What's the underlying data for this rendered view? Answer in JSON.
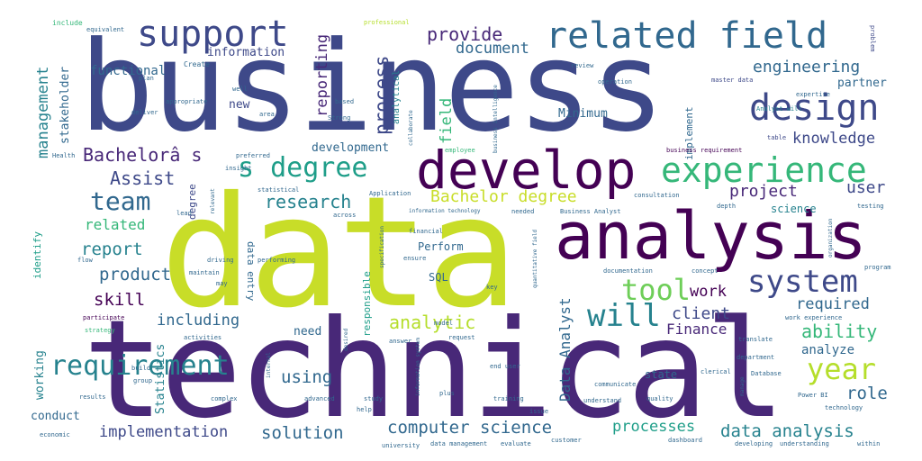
{
  "palette": {
    "background": "#ffffff",
    "dark_purple": "#440154",
    "purple": "#482878",
    "indigo": "#3e4989",
    "blue": "#31688e",
    "teal": "#26828e",
    "green_teal": "#1f9e89",
    "green": "#35b779",
    "light_green": "#6ece58",
    "yellow_green": "#b5de2b",
    "yellow": "#c8dd28"
  },
  "words": {
    "w_business": "business",
    "w_data": "data",
    "w_technical": "technical",
    "w_analysis": "analysis",
    "w_develop": "develop",
    "w_related_field": "related field",
    "w_design": "design",
    "w_experience": "experience",
    "w_support": "support",
    "w_s_degree": "s degree",
    "w_requirement": "requirement",
    "w_team": "team",
    "w_tool": "tool",
    "w_will": "will",
    "w_system": "system",
    "w_year": "year",
    "w_engineering": "engineering",
    "w_provide": "provide",
    "w_document": "document",
    "w_management": "management",
    "w_bachelora_s": "Bachelorâ s",
    "w_assist": "Assist",
    "w_research": "research",
    "w_bachelor_degree": "Bachelor degree",
    "w_process": "process",
    "w_reporting": "reporting",
    "w_project": "project",
    "w_knowledge": "knowledge",
    "w_user": "user",
    "w_related": "related",
    "w_report": "report",
    "w_product": "product",
    "w_skill": "skill",
    "w_including": "including",
    "w_analytic": "analytic",
    "w_client": "client",
    "w_finance": "Finance",
    "w_ability": "ability",
    "w_required": "required",
    "w_work": "work",
    "w_analyze": "analyze",
    "w_role": "role",
    "w_data_analyst": "Data Analyst",
    "w_using": "using",
    "w_computer_science": "computer science",
    "w_solution": "solution",
    "w_implementation": "implementation",
    "w_processes": "processes",
    "w_data_analysis": "data analysis",
    "w_conduct": "conduct",
    "w_working": "working",
    "w_statistics": "Statistics",
    "w_functional": "functional",
    "w_information": "information",
    "w_stakeholder": "stakeholder",
    "w_development": "development",
    "w_field": "field",
    "w_minimum": "Minimum",
    "w_partner": "partner",
    "w_implement": "implement",
    "w_science": "science",
    "w_new": "new",
    "w_perform": "Perform",
    "w_sql": "SQL",
    "w_need": "need",
    "w_identify": "identify",
    "w_responsible": "responsible",
    "w_state": "state",
    "w_data_entry": "data entry",
    "w_degree": "degree",
    "w_analytical": "analytical",
    "w_create": "Create",
    "w_include": "include",
    "w_equivalent": "equivalent",
    "w_professional": "professional",
    "w_operation": "operation",
    "w_master_data": "master data",
    "w_business_intelligence": "business intelligence",
    "w_analyst_will": "Analyst will",
    "w_expertise": "expertise",
    "w_problem": "problem",
    "w_table": "table",
    "w_business_requirement": "business requirement",
    "w_strong": "Strong",
    "w_collaborate": "collaborate",
    "w_preferred": "preferred",
    "w_employee": "employee",
    "w_insight": "insight",
    "w_statistical": "statistical",
    "w_application": "Application",
    "w_information_technology": "information technology",
    "w_business_analyst": "Business Analyst",
    "w_consultation": "consultation",
    "w_depth": "depth",
    "w_testing": "testing",
    "w_across": "across",
    "w_needed": "needed",
    "w_financial": "financial",
    "w_performing": "performing",
    "w_ensure": "ensure",
    "w_specification": "specification",
    "w_documentation": "documentation",
    "w_concept": "concept",
    "w_program": "program",
    "w_driving": "driving",
    "w_maintain": "maintain",
    "w_participate": "participate",
    "w_strategy": "strategy",
    "w_activities": "activities",
    "w_translate": "translate",
    "w_department": "department",
    "w_work_experience": "work experience",
    "w_clerical": "clerical",
    "w_database": "Database",
    "w_power_bi": "Power BI",
    "w_communicate": "communicate",
    "w_understand": "understand",
    "w_quality": "quality",
    "w_technology": "technology",
    "w_results": "results",
    "w_complex": "complex",
    "w_advanced": "advanced",
    "w_study": "study",
    "w_help": "help",
    "w_training": "training",
    "w_economic": "economic",
    "w_university": "university",
    "w_data_management": "data management",
    "w_evaluate": "evaluate",
    "w_customer": "customer",
    "w_dashboard": "dashboard",
    "w_developing": "developing",
    "w_understanding": "understanding",
    "w_within": "within",
    "w_health": "Health",
    "w_plan": "plan",
    "w_well": "well",
    "w_deliver": "deliver",
    "w_appropriate": "appropriate",
    "w_area": "area",
    "w_review": "review",
    "w_build": "build",
    "w_group": "group",
    "w_end_user": "end user",
    "w_request": "request",
    "w_model": "model",
    "w_key": "key",
    "w_plus": "plus",
    "w_answer": "answer",
    "w_relevant": "relevant",
    "w_may": "may",
    "w_based": "based",
    "w_flow": "flow",
    "w_quantitative_field": "quantitative field",
    "w_information_system": "information system",
    "w_manage": "manage",
    "w_organization": "organization",
    "w_internal": "internal",
    "w_desired": "desired",
    "w_issue": "issue",
    "w_lead": "lead"
  }
}
